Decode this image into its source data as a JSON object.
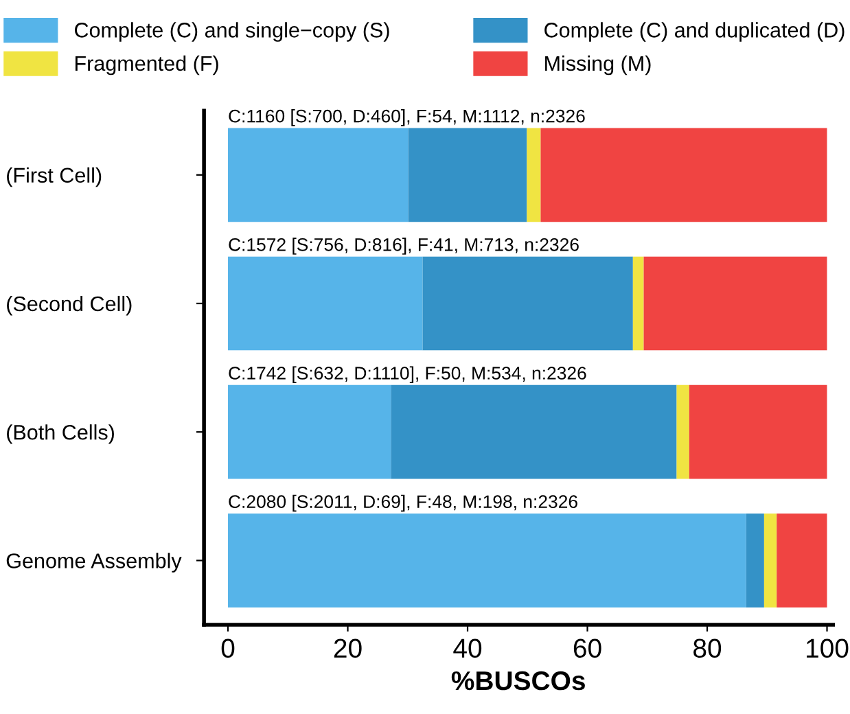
{
  "chart_data": {
    "type": "bar",
    "orientation": "horizontal",
    "stacked": true,
    "xlabel": "%BUSCOs",
    "categories": [
      "(First Cell)",
      "(Second Cell)",
      "(Both Cells)",
      "Genome Assembly"
    ],
    "series": [
      {
        "name": "Complete (C) and single−copy (S)",
        "color": "#56b4e9",
        "values": [
          30.1,
          32.5,
          27.2,
          86.5
        ]
      },
      {
        "name": "Complete (C) and duplicated (D)",
        "color": "#3492c7",
        "values": [
          19.8,
          35.1,
          47.7,
          3.0
        ]
      },
      {
        "name": "Fragmented (F)",
        "color": "#f0e442",
        "values": [
          2.3,
          1.8,
          2.1,
          2.1
        ]
      },
      {
        "name": "Missing (M)",
        "color": "#f04442",
        "values": [
          47.8,
          30.6,
          23.0,
          8.4
        ]
      }
    ],
    "annotations": [
      "C:1160 [S:700, D:460], F:54, M:1112, n:2326",
      "C:1572 [S:756, D:816], F:41, M:713, n:2326",
      "C:1742 [S:632, D:1110], F:50, M:534, n:2326",
      "C:2080 [S:2011, D:69], F:48, M:198, n:2326"
    ],
    "xlim": [
      -4,
      101
    ],
    "xticks": [
      0,
      20,
      40,
      60,
      80,
      100
    ],
    "grid": false,
    "legend": "top"
  }
}
